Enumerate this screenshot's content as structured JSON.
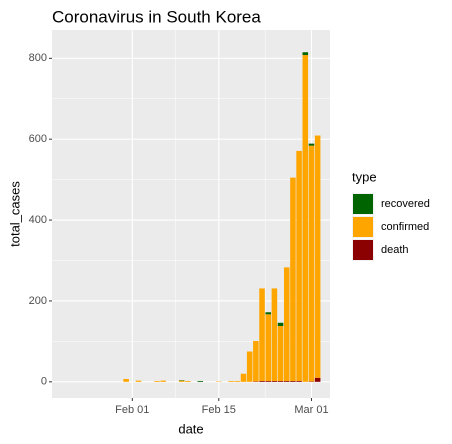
{
  "chart_data": {
    "type": "bar",
    "stacked": true,
    "title": "Coronavirus in  South Korea",
    "x_label": "date",
    "y_label": "total_cases",
    "legend_title": "type",
    "legend_position": "right",
    "x": [
      "Jan 31",
      "Feb 02",
      "Feb 05",
      "Feb 06",
      "Feb 09",
      "Feb 10",
      "Feb 12",
      "Feb 15",
      "Feb 17",
      "Feb 18",
      "Feb 19",
      "Feb 20",
      "Feb 21",
      "Feb 22",
      "Feb 23",
      "Feb 24",
      "Feb 25",
      "Feb 26",
      "Feb 27",
      "Feb 28",
      "Feb 29",
      "Mar 01",
      "Mar 02"
    ],
    "series": [
      {
        "name": "recovered",
        "color": "#006400",
        "values": [
          0,
          0,
          0,
          0,
          1,
          0,
          2,
          0,
          0,
          0,
          0,
          0,
          0,
          0,
          5,
          0,
          8,
          0,
          0,
          0,
          7,
          5,
          0
        ]
      },
      {
        "name": "confirmed",
        "color": "#ffa500",
        "values": [
          7,
          3,
          2,
          3,
          3,
          2,
          0,
          1,
          2,
          2,
          20,
          75,
          100,
          229,
          165,
          229,
          136,
          281,
          503,
          569,
          808,
          583,
          599
        ]
      },
      {
        "name": "death",
        "color": "#8b0000",
        "values": [
          0,
          0,
          0,
          0,
          0,
          0,
          0,
          0,
          0,
          0,
          0,
          0,
          1,
          2,
          2,
          2,
          2,
          2,
          2,
          2,
          0,
          1,
          10
        ]
      }
    ],
    "xlim": [
      "Jan 19",
      "Mar 04"
    ],
    "xticks": [
      "Feb 01",
      "Feb 15",
      "Mar 01"
    ],
    "ylim": [
      -40,
      870
    ],
    "yticks": [
      0,
      200,
      400,
      600,
      800
    ],
    "grid": true
  }
}
